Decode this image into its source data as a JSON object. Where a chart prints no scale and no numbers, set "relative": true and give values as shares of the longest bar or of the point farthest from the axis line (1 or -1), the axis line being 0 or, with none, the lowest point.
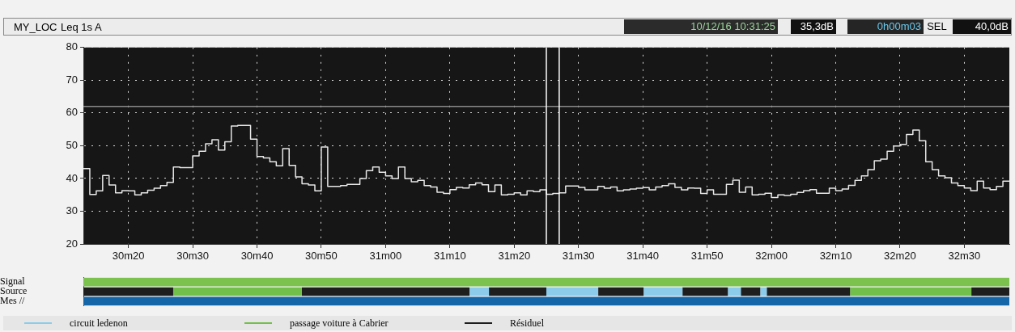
{
  "chart_data": [
    {
      "type": "step",
      "title": "MY_LOC",
      "subtitle": "Leq 1s A",
      "annotations": [
        "10/12/16 10:31:25",
        "35,3dB",
        "0h00m03",
        "SEL",
        "40,0dB"
      ],
      "x": [
        "--12-10T10:30:13",
        "--12-10T10:30:14",
        "--12-10T10:30:15",
        "--12-10T10:30:16",
        "--12-10T10:30:17",
        "--12-10T10:30:18",
        "--12-10T10:30:19",
        "--12-10T10:30:20",
        "--12-10T10:30:21",
        "--12-10T10:30:22",
        "--12-10T10:30:23",
        "--12-10T10:30:24",
        "--12-10T10:30:25",
        "--12-10T10:30:26",
        "--12-10T10:30:27",
        "--12-10T10:30:28",
        "--12-10T10:30:29",
        "--12-10T10:30:30",
        "--12-10T10:30:31",
        "--12-10T10:30:32",
        "--12-10T10:30:33",
        "--12-10T10:30:34",
        "--12-10T10:30:35",
        "--12-10T10:30:36",
        "--12-10T10:30:37",
        "--12-10T10:30:38",
        "--12-10T10:30:39",
        "--12-10T10:30:40",
        "--12-10T10:30:41",
        "--12-10T10:30:42",
        "--12-10T10:30:43",
        "--12-10T10:30:44",
        "--12-10T10:30:45",
        "--12-10T10:30:46",
        "--12-10T10:30:47",
        "--12-10T10:30:48",
        "--12-10T10:30:49",
        "--12-10T10:30:50",
        "--12-10T10:30:51",
        "--12-10T10:30:52",
        "--12-10T10:30:53",
        "--12-10T10:30:54",
        "--12-10T10:30:55",
        "--12-10T10:30:56",
        "--12-10T10:30:57",
        "--12-10T10:30:58",
        "--12-10T10:30:59",
        "--12-10T10:31:00",
        "--12-10T10:31:01",
        "--12-10T10:31:02",
        "--12-10T10:31:03",
        "--12-10T10:31:04",
        "--12-10T10:31:05",
        "--12-10T10:31:06",
        "--12-10T10:31:07",
        "--12-10T10:31:08",
        "--12-10T10:31:09",
        "--12-10T10:31:10",
        "--12-10T10:31:11",
        "--12-10T10:31:12",
        "--12-10T10:31:13",
        "--12-10T10:31:14",
        "--12-10T10:31:15",
        "--12-10T10:31:16",
        "--12-10T10:31:17",
        "--12-10T10:31:18",
        "--12-10T10:31:19",
        "--12-10T10:31:20",
        "--12-10T10:31:21",
        "--12-10T10:31:22",
        "--12-10T10:31:23",
        "--12-10T10:31:24",
        "--12-10T10:31:25",
        "--12-10T10:31:26",
        "--12-10T10:31:27",
        "--12-10T10:31:28",
        "--12-10T10:31:29",
        "--12-10T10:31:30",
        "--12-10T10:31:31",
        "--12-10T10:31:32",
        "--12-10T10:31:33",
        "--12-10T10:31:34",
        "--12-10T10:31:35",
        "--12-10T10:31:36",
        "--12-10T10:31:37",
        "--12-10T10:31:38",
        "--12-10T10:31:39",
        "--12-10T10:31:40",
        "--12-10T10:31:41",
        "--12-10T10:31:42",
        "--12-10T10:31:43",
        "--12-10T10:31:44",
        "--12-10T10:31:45",
        "--12-10T10:31:46",
        "--12-10T10:31:47",
        "--12-10T10:31:48",
        "--12-10T10:31:49",
        "--12-10T10:31:50",
        "--12-10T10:31:51",
        "--12-10T10:31:52",
        "--12-10T10:31:53",
        "--12-10T10:31:54",
        "--12-10T10:31:55",
        "--12-10T10:31:56",
        "--12-10T10:31:57",
        "--12-10T10:31:58",
        "--12-10T10:31:59",
        "--12-10T10:32:00",
        "--12-10T10:32:01",
        "--12-10T10:32:02",
        "--12-10T10:32:03",
        "--12-10T10:32:04",
        "--12-10T10:32:05",
        "--12-10T10:32:06",
        "--12-10T10:32:07",
        "--12-10T10:32:08",
        "--12-10T10:32:09",
        "--12-10T10:32:10",
        "--12-10T10:32:11",
        "--12-10T10:32:12",
        "--12-10T10:32:13",
        "--12-10T10:32:14",
        "--12-10T10:32:15",
        "--12-10T10:32:16",
        "--12-10T10:32:17",
        "--12-10T10:32:18",
        "--12-10T10:32:19",
        "--12-10T10:32:20",
        "--12-10T10:32:21",
        "--12-10T10:32:22",
        "--12-10T10:32:23",
        "--12-10T10:32:24",
        "--12-10T10:32:25",
        "--12-10T10:32:26",
        "--12-10T10:32:27",
        "--12-10T10:32:28",
        "--12-10T10:32:29",
        "--12-10T10:32:30",
        "--12-10T10:32:31",
        "--12-10T10:32:32",
        "--12-10T10:32:33",
        "--12-10T10:32:34",
        "--12-10T10:32:35",
        "--12-10T10:32:36",
        "--12-10T10:32:37"
      ],
      "values": [
        43,
        35.1,
        36.2,
        40.9,
        38,
        35.6,
        36.3,
        36.2,
        35,
        35.6,
        36.4,
        37,
        37.8,
        38.8,
        43.5,
        43.3,
        43.3,
        46.9,
        48.3,
        50.6,
        51.8,
        48.7,
        51.2,
        56,
        56.2,
        56.2,
        52,
        46.7,
        46.3,
        45.1,
        43.9,
        49.1,
        44,
        40.5,
        38.4,
        38,
        36.2,
        49.6,
        37.6,
        37.6,
        37.8,
        38.2,
        38.2,
        40,
        42.4,
        43.5,
        41.9,
        40.8,
        40,
        43.5,
        40,
        39,
        39.4,
        37.8,
        37.4,
        35.8,
        35.4,
        36.6,
        37.3,
        37.1,
        38.1,
        38.6,
        38.1,
        36,
        38,
        35,
        35.2,
        35.6,
        35,
        36.2,
        36,
        36.5,
        35.2,
        35.4,
        35.6,
        37.7,
        37.7,
        37.3,
        36.5,
        36.5,
        37.6,
        37,
        37.4,
        36.2,
        36.5,
        36.8,
        37,
        37.2,
        36.5,
        37.4,
        37.8,
        38.4,
        37.3,
        36.5,
        37.1,
        37,
        35.4,
        36.5,
        35.2,
        35.2,
        38.2,
        39.5,
        35.8,
        37.4,
        35,
        35.2,
        35.5,
        34.2,
        35,
        34.8,
        35.2,
        35.7,
        36.3,
        36.6,
        35.5,
        35.5,
        37,
        36.3,
        36.8,
        37.9,
        39.4,
        40.8,
        42.7,
        45.4,
        45.9,
        48.3,
        49.9,
        50.4,
        53.4,
        54.8,
        51.5,
        45.1,
        42.7,
        40.8,
        40.2,
        38.6,
        37.8,
        37.1,
        36.3,
        39.2,
        37.1,
        36.6,
        37.6,
        39.2,
        39.2
      ],
      "color": "#e8e8e8",
      "xlim": [
        "--12-10T10:30:13",
        "--12-10T10:32:37"
      ],
      "xticks": [
        {
          "value": "--12-10T10:30:20",
          "label": "30m20"
        },
        {
          "value": "--12-10T10:30:30",
          "label": "30m30"
        },
        {
          "value": "--12-10T10:30:40",
          "label": "30m40"
        },
        {
          "value": "--12-10T10:30:50",
          "label": "30m50"
        },
        {
          "value": "--12-10T10:31:00",
          "label": "31m00"
        },
        {
          "value": "--12-10T10:31:10",
          "label": "31m10"
        },
        {
          "value": "--12-10T10:31:20",
          "label": "31m20"
        },
        {
          "value": "--12-10T10:31:30",
          "label": "31m30"
        },
        {
          "value": "--12-10T10:31:40",
          "label": "31m40"
        },
        {
          "value": "--12-10T10:31:50",
          "label": "31m50"
        },
        {
          "value": "--12-10T10:32:00",
          "label": "32m00"
        },
        {
          "value": "--12-10T10:32:10",
          "label": "32m10"
        },
        {
          "value": "--12-10T10:32:20",
          "label": "32m20"
        },
        {
          "value": "--12-10T10:32:30",
          "label": "32m30"
        }
      ],
      "ylim": [
        20,
        80
      ],
      "yticks": [
        20,
        30,
        40,
        50,
        60,
        70,
        80
      ],
      "grid": true,
      "ref_lines": [
        {
          "axis": "y",
          "value": 62,
          "color": "#8a8a8a"
        },
        {
          "axis": "x",
          "value": "--12-10T10:31:25",
          "color": "#ffffff"
        },
        {
          "axis": "x",
          "value": "--12-10T10:31:27",
          "color": "#ffffff"
        }
      ]
    },
    {
      "type": "bar",
      "orientation": "horizontal",
      "stacked": true,
      "relative": true,
      "categories": [
        "Signal",
        "Source",
        "Mes //"
      ],
      "legend": "bottom",
      "series": [
        {
          "color": "#7cc24e",
          "values": [
            1,
            null,
            null
          ]
        },
        {
          "color": "#1466a8",
          "values": [
            null,
            null,
            1
          ]
        },
        {
          "color": "#1e1e1e",
          "values": [
            null,
            0.097,
            null
          ]
        },
        {
          "color": "#72bf4c",
          "values": [
            null,
            0.139,
            null
          ]
        },
        {
          "color": "#1e1e1e",
          "values": [
            null,
            0.181,
            null
          ]
        },
        {
          "name": "circuit ledenon",
          "color": "#8ccbea",
          "values": [
            null,
            0.021,
            null
          ]
        },
        {
          "color": "#1e1e1e",
          "values": [
            null,
            0.062,
            null
          ]
        },
        {
          "color": "#8ccbea",
          "values": [
            null,
            0.056,
            null
          ]
        },
        {
          "color": "#1e1e1e",
          "values": [
            null,
            0.049,
            null
          ]
        },
        {
          "color": "#8ccbea",
          "values": [
            null,
            0.042,
            null
          ]
        },
        {
          "color": "#1e1e1e",
          "values": [
            null,
            0.049,
            null
          ]
        },
        {
          "color": "#8ccbea",
          "values": [
            null,
            0.014,
            null
          ]
        },
        {
          "color": "#1e1e1e",
          "values": [
            null,
            0.021,
            null
          ]
        },
        {
          "color": "#8ccbea",
          "values": [
            null,
            0.007,
            null
          ]
        },
        {
          "color": "#1e1e1e",
          "values": [
            null,
            0.09,
            null
          ]
        },
        {
          "name": "passage voiture à Cabrier",
          "color": "#72bf4c",
          "values": [
            null,
            0.131,
            null
          ]
        },
        {
          "name": "Résiduel",
          "color": "#1e1e1e",
          "values": [
            null,
            0.041,
            null
          ]
        }
      ]
    }
  ]
}
